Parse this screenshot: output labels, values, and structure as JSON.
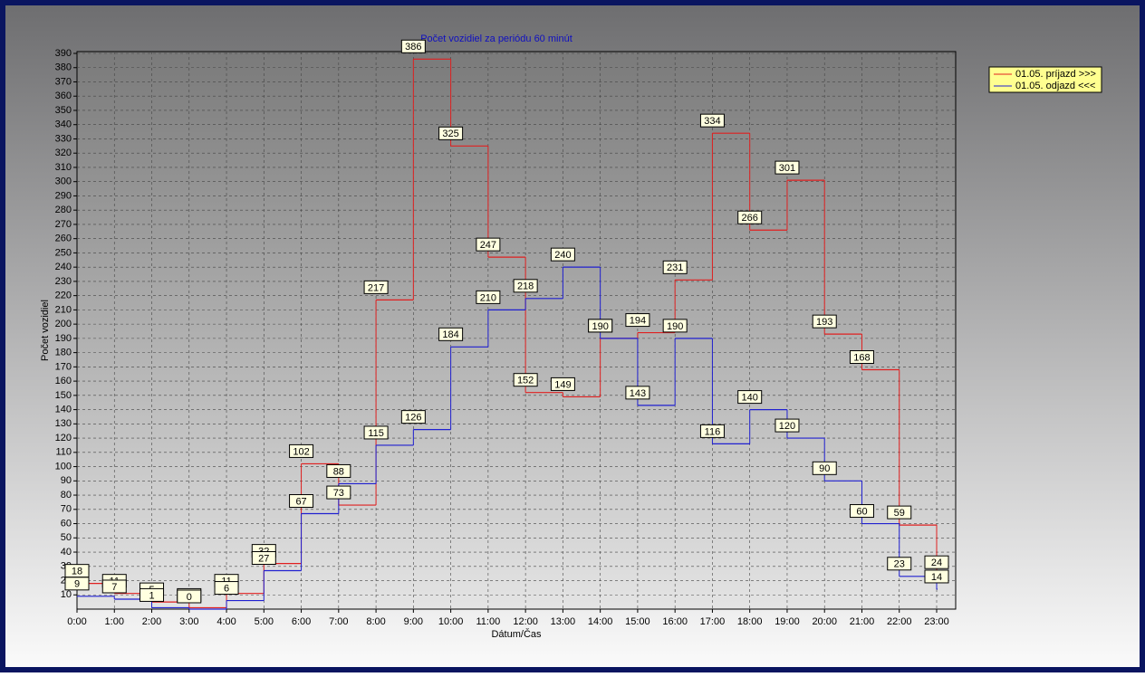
{
  "chart_data": {
    "type": "line",
    "step": true,
    "title": "Počet vozidiel za periódu 60 minút",
    "x_label": "Dátum/Čas",
    "y_label": "Počet vozidiel",
    "categories": [
      "0:00",
      "1:00",
      "2:00",
      "3:00",
      "4:00",
      "5:00",
      "6:00",
      "7:00",
      "8:00",
      "9:00",
      "10:00",
      "11:00",
      "12:00",
      "13:00",
      "14:00",
      "15:00",
      "16:00",
      "17:00",
      "18:00",
      "19:00",
      "20:00",
      "21:00",
      "22:00",
      "23:00"
    ],
    "series": [
      {
        "name": "01.05.  príjazd >>>",
        "color": "#e02020",
        "values": [
          18,
          11,
          5,
          1,
          11,
          32,
          102,
          73,
          217,
          386,
          325,
          247,
          152,
          149,
          190,
          194,
          231,
          334,
          266,
          301,
          193,
          168,
          59,
          24
        ]
      },
      {
        "name": "01.05.  odjazd <<<",
        "color": "#2020d0",
        "values": [
          9,
          7,
          1,
          0,
          6,
          27,
          67,
          88,
          115,
          126,
          184,
          210,
          218,
          240,
          190,
          143,
          190,
          116,
          140,
          120,
          90,
          60,
          23,
          14
        ]
      }
    ],
    "ylim": [
      0,
      390
    ],
    "yticks": [
      10,
      20,
      30,
      40,
      50,
      60,
      70,
      80,
      90,
      100,
      110,
      120,
      130,
      140,
      150,
      160,
      170,
      180,
      190,
      200,
      210,
      220,
      230,
      240,
      250,
      260,
      270,
      280,
      290,
      300,
      310,
      320,
      330,
      340,
      350,
      360,
      370,
      380,
      390
    ],
    "grid": true,
    "legend": "top-right"
  }
}
